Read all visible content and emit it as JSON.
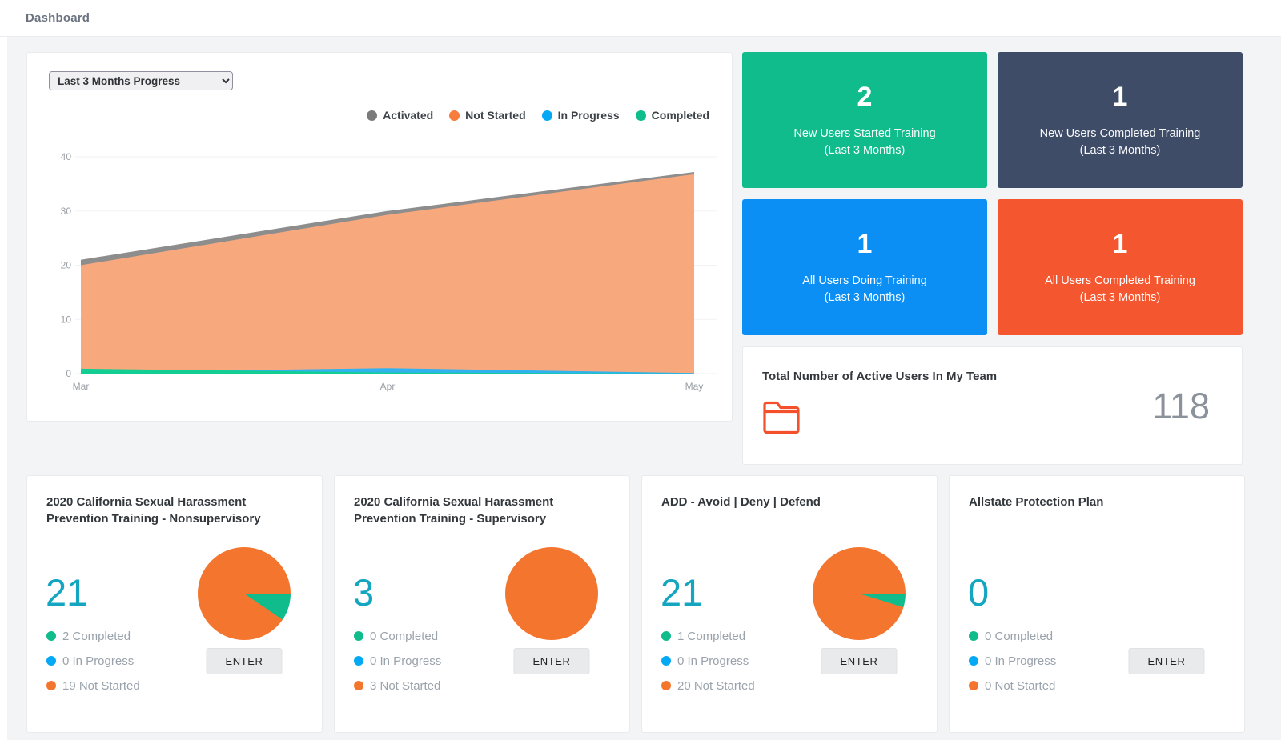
{
  "page": {
    "title": "Dashboard"
  },
  "chart_card": {
    "filter_selected": "Last 3 Months Progress"
  },
  "chart_data": {
    "type": "area",
    "x": [
      "Mar",
      "Apr",
      "May"
    ],
    "series": [
      {
        "name": "Activated",
        "color": "#7b7b7b",
        "fill": "#8d8d8d",
        "values": [
          21,
          30,
          37.2
        ]
      },
      {
        "name": "Not Started",
        "color": "#f87d3d",
        "fill": "#f8a87d",
        "values": [
          20,
          29.3,
          36.8
        ]
      },
      {
        "name": "In Progress",
        "color": "#04a9f5",
        "fill": "#30b2ef",
        "values": [
          0.2,
          1,
          0.1
        ]
      },
      {
        "name": "Completed",
        "color": "#0fbd8c",
        "fill": "#13ce93",
        "values": [
          0.9,
          0.2,
          0
        ]
      }
    ],
    "ylim": [
      0,
      40
    ],
    "ytick_step": 10,
    "grid": true,
    "legend_position": "top-right"
  },
  "stats": {
    "cards": [
      {
        "value": "2",
        "line1": "New Users Started Training",
        "line2": "(Last 3 Months)",
        "bg": "#10bc8b"
      },
      {
        "value": "1",
        "line1": "New Users Completed Training",
        "line2": "(Last 3 Months)",
        "bg": "#3e4c68"
      },
      {
        "value": "1",
        "line1": "All Users Doing Training",
        "line2": "(Last 3 Months)",
        "bg": "#0b8ff5"
      },
      {
        "value": "1",
        "line1": "All Users Completed Training",
        "line2": "(Last 3 Months)",
        "bg": "#f4562f"
      }
    ]
  },
  "team": {
    "title": "Total Number of Active Users In My Team",
    "count": "118",
    "folder_icon_color": "#f4502c"
  },
  "status_labels": {
    "completed": "Completed",
    "in_progress": "In Progress",
    "not_started": "Not Started"
  },
  "status_colors": {
    "completed": "#10bc8b",
    "in_progress": "#04a9f5",
    "not_started": "#f4752d"
  },
  "trainings": [
    {
      "title": "2020 California Sexual Harassment Prevention Training - Nonsupervisory",
      "count": "21",
      "completed": 2,
      "in_progress": 0,
      "not_started": 19,
      "has_pie": true,
      "enter_label": "ENTER"
    },
    {
      "title": "2020 California Sexual Harassment Prevention Training - Supervisory",
      "count": "3",
      "completed": 0,
      "in_progress": 0,
      "not_started": 3,
      "has_pie": true,
      "enter_label": "ENTER"
    },
    {
      "title": "ADD - Avoid | Deny | Defend",
      "count": "21",
      "completed": 1,
      "in_progress": 0,
      "not_started": 20,
      "has_pie": true,
      "enter_label": "ENTER"
    },
    {
      "title": "Allstate Protection Plan",
      "count": "0",
      "completed": 0,
      "in_progress": 0,
      "not_started": 0,
      "has_pie": false,
      "enter_label": "ENTER"
    }
  ]
}
